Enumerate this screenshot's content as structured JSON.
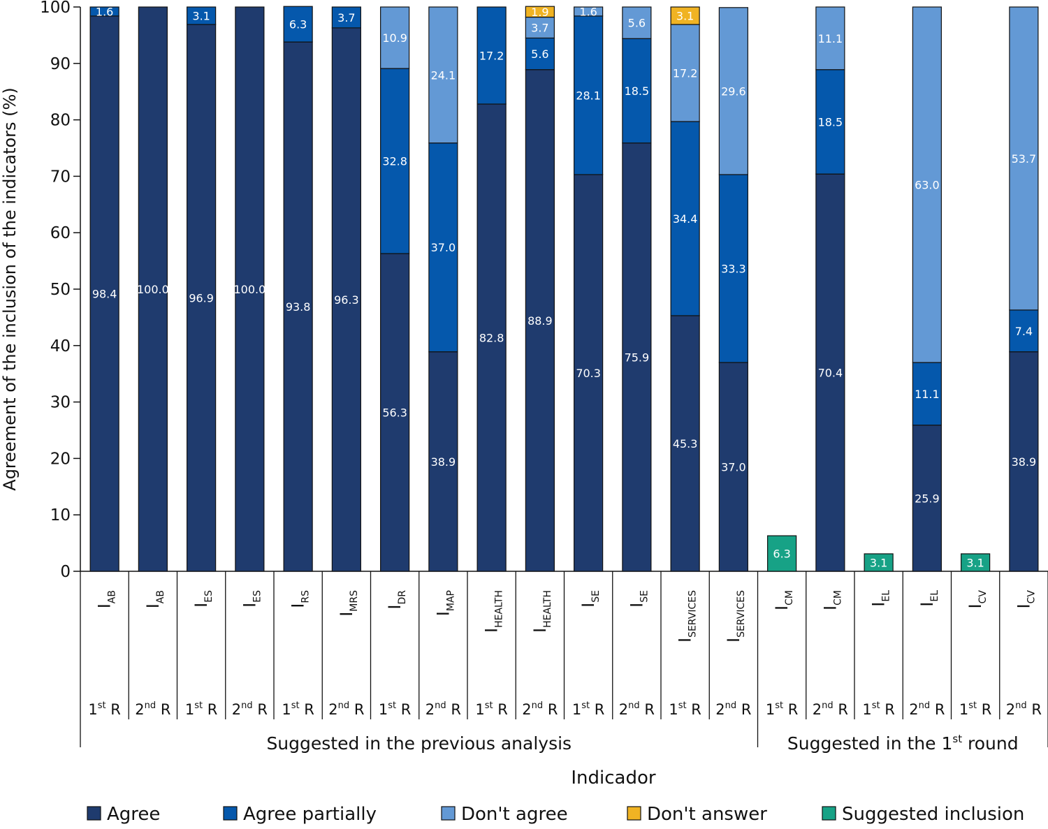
{
  "chart_data": {
    "type": "bar",
    "stacked": true,
    "title": "",
    "ylabel": "Agreement of the inclusion of the indicators (%)",
    "xlabel": "Indicador",
    "ylim": [
      0,
      100
    ],
    "yticks": [
      0,
      10,
      20,
      30,
      40,
      50,
      60,
      70,
      80,
      90,
      100
    ],
    "legend_position": "bottom",
    "colors": {
      "Agree": "#1f3b6e",
      "Agree partially": "#0558ac",
      "Don't agree": "#6399d5",
      "Don't answer": "#f0b323",
      "Suggested inclusion": "#17a286"
    },
    "categories": [
      {
        "indicator": "I",
        "sub": "AB",
        "round": "1",
        "sup": "st",
        "suffix": " R"
      },
      {
        "indicator": "I",
        "sub": "AB",
        "round": "2",
        "sup": "nd",
        "suffix": " R"
      },
      {
        "indicator": "I",
        "sub": "ES",
        "round": "1",
        "sup": "st",
        "suffix": " R"
      },
      {
        "indicator": "I",
        "sub": "ES",
        "round": "2",
        "sup": "nd",
        "suffix": " R"
      },
      {
        "indicator": "I",
        "sub": "RS",
        "round": "1",
        "sup": "st",
        "suffix": " R"
      },
      {
        "indicator": "I",
        "sub": "MRS",
        "round": "2",
        "sup": "nd",
        "suffix": " R"
      },
      {
        "indicator": "I",
        "sub": "DR",
        "round": "1",
        "sup": "st",
        "suffix": " R"
      },
      {
        "indicator": "I",
        "sub": "MAP",
        "round": "2",
        "sup": "nd",
        "suffix": " R"
      },
      {
        "indicator": "I",
        "sub": "HEALTH",
        "round": "1",
        "sup": "st",
        "suffix": " R"
      },
      {
        "indicator": "I",
        "sub": "HEALTH",
        "round": "2",
        "sup": "nd",
        "suffix": " R"
      },
      {
        "indicator": "I",
        "sub": "SE",
        "round": "1",
        "sup": "st",
        "suffix": " R"
      },
      {
        "indicator": "I",
        "sub": "SE",
        "round": "2",
        "sup": "nd",
        "suffix": " R"
      },
      {
        "indicator": "I",
        "sub": "SERVICES",
        "round": "1",
        "sup": "st",
        "suffix": " R"
      },
      {
        "indicator": "I",
        "sub": "SERVICES",
        "round": "2",
        "sup": "nd",
        "suffix": " R"
      },
      {
        "indicator": "I",
        "sub": "CM",
        "round": "1",
        "sup": "st",
        "suffix": " R"
      },
      {
        "indicator": "I",
        "sub": "CM",
        "round": "2",
        "sup": "nd",
        "suffix": " R"
      },
      {
        "indicator": "I",
        "sub": "EL",
        "round": "1",
        "sup": "st",
        "suffix": " R"
      },
      {
        "indicator": "I",
        "sub": "EL",
        "round": "2",
        "sup": "nd",
        "suffix": " R"
      },
      {
        "indicator": "I",
        "sub": "CV",
        "round": "1",
        "sup": "st",
        "suffix": " R"
      },
      {
        "indicator": "I",
        "sub": "CV",
        "round": "2",
        "sup": "nd",
        "suffix": " R"
      }
    ],
    "series": [
      {
        "name": "Agree",
        "values": [
          98.4,
          100.0,
          96.9,
          100.0,
          93.8,
          96.3,
          56.3,
          38.9,
          82.8,
          88.9,
          70.3,
          75.9,
          45.3,
          37.0,
          0,
          70.4,
          0,
          25.9,
          0,
          38.9
        ]
      },
      {
        "name": "Agree partially",
        "values": [
          1.6,
          0,
          3.1,
          0,
          6.3,
          3.7,
          32.8,
          37.0,
          17.2,
          5.6,
          28.1,
          18.5,
          34.4,
          33.3,
          0,
          18.5,
          0,
          11.1,
          0,
          7.4
        ]
      },
      {
        "name": "Don't agree",
        "values": [
          0,
          0,
          0,
          0,
          0,
          0,
          10.9,
          24.1,
          0,
          3.7,
          1.6,
          5.6,
          17.2,
          29.6,
          0,
          11.1,
          0,
          63.0,
          0,
          53.7
        ]
      },
      {
        "name": "Don't answer",
        "values": [
          0,
          0,
          0,
          0,
          0,
          0,
          0,
          0,
          0,
          1.9,
          0,
          0,
          3.1,
          0,
          0,
          0,
          0,
          0,
          0,
          0
        ]
      },
      {
        "name": "Suggested inclusion",
        "values": [
          0,
          0,
          0,
          0,
          0,
          0,
          0,
          0,
          0,
          0,
          0,
          0,
          0,
          0,
          6.3,
          0,
          3.1,
          0,
          3.1,
          0
        ]
      }
    ],
    "groups": [
      {
        "label": "Suggested in the previous analysis",
        "from": 0,
        "to": 13
      },
      {
        "label_parts": [
          "Suggested in the 1",
          "st",
          " round"
        ],
        "from": 14,
        "to": 19
      }
    ]
  }
}
